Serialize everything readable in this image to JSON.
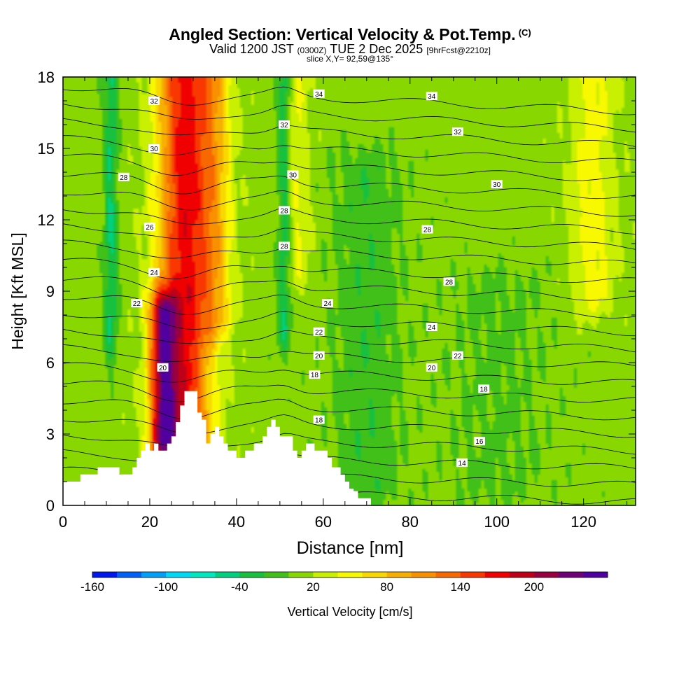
{
  "header": {
    "title": "Angled Section: Vertical Velocity & Pot.Temp.",
    "copyright": "(C)",
    "valid_prefix": "Valid 1200 JST",
    "valid_utc": "(0300Z)",
    "valid_date": "TUE 2 Dec 2025",
    "forecast": "[9hrFcst@2210z]",
    "slice": "slice X,Y= 92,59@135°"
  },
  "chart_data": {
    "type": "heatmap",
    "title": "Angled Section: Vertical Velocity & Pot.Temp.",
    "xlabel": "Distance [nm]",
    "ylabel": "Height [Kft MSL]",
    "xlim": [
      0,
      132
    ],
    "ylim": [
      0,
      18
    ],
    "x_ticks": [
      0,
      20,
      40,
      60,
      80,
      100,
      120
    ],
    "y_ticks": [
      0,
      3,
      6,
      9,
      12,
      15,
      18
    ],
    "colorbar": {
      "label": "Vertical Velocity [cm/s]",
      "range": [
        -160,
        260
      ],
      "step": 20,
      "tick_values": [
        -160,
        -100,
        -40,
        20,
        80,
        140,
        200
      ],
      "tick_labels": [
        "-160",
        "-100",
        "-40",
        "20",
        "80",
        "140",
        "200"
      ],
      "colors": [
        "#0018f0",
        "#0060f8",
        "#00a0f8",
        "#00d8f8",
        "#00e8c0",
        "#00d080",
        "#18c040",
        "#40c018",
        "#88d800",
        "#c8f000",
        "#f8f800",
        "#f8d800",
        "#f8b000",
        "#f89000",
        "#f86800",
        "#f83800",
        "#f00000",
        "#c00018",
        "#980040",
        "#700078",
        "#5000a0"
      ]
    },
    "background_velocity_cm_s": 10,
    "velocity_features": [
      {
        "kind": "updraft",
        "x": 28,
        "x_halfwidth": 6,
        "z_bottom": 3,
        "z_top": 18,
        "peak_cm_s": 160
      },
      {
        "kind": "updraft",
        "x": 23,
        "x_halfwidth": 3,
        "z_bottom": 2,
        "z_top": 8,
        "peak_cm_s": 160
      },
      {
        "kind": "updraft",
        "x": 35,
        "x_halfwidth": 4,
        "z_bottom": 8,
        "z_top": 18,
        "peak_cm_s": 60
      },
      {
        "kind": "downdraft",
        "x": 11,
        "x_halfwidth": 1.5,
        "z_bottom": 7,
        "z_top": 18,
        "peak_cm_s": -50
      },
      {
        "kind": "downdraft",
        "x": 51,
        "x_halfwidth": 1.5,
        "z_bottom": 7.5,
        "z_top": 18,
        "peak_cm_s": -50
      },
      {
        "kind": "updraft",
        "x": 54,
        "x_halfwidth": 3,
        "z_bottom": 10,
        "z_top": 18,
        "peak_cm_s": 30
      },
      {
        "kind": "updraft",
        "x": 122,
        "x_halfwidth": 5,
        "z_bottom": 9,
        "z_top": 18,
        "peak_cm_s": 40
      },
      {
        "kind": "downdraft",
        "x": 70,
        "x_halfwidth": 8,
        "z_bottom": 1,
        "z_top": 14,
        "peak_cm_s": -25
      },
      {
        "kind": "downdraft",
        "x": 100,
        "x_halfwidth": 12,
        "z_bottom": 1,
        "z_top": 9,
        "peak_cm_s": -15
      }
    ],
    "terrain_x_nm": [
      0,
      4,
      4,
      8,
      8,
      13,
      13,
      16,
      16,
      17,
      17,
      18,
      18,
      19,
      19,
      20,
      20,
      21,
      21,
      22,
      22,
      24,
      24,
      25,
      25,
      26,
      26,
      27,
      27,
      28,
      28,
      31,
      31,
      32,
      32,
      33,
      33,
      34,
      34,
      35,
      35,
      36,
      36,
      37,
      37,
      38,
      38,
      40,
      40,
      42,
      42,
      44,
      44,
      46,
      46,
      47,
      47,
      48,
      48,
      49,
      49,
      50,
      50,
      53,
      53,
      54,
      54,
      55,
      55,
      56,
      56,
      58,
      58,
      61,
      61,
      62,
      62,
      64,
      64,
      65,
      65,
      66,
      66,
      67,
      67,
      68,
      68,
      71,
      71,
      132
    ],
    "terrain_kft": [
      1,
      1,
      1.3,
      1.3,
      1.6,
      1.6,
      1.3,
      1.3,
      1.6,
      1.6,
      2.0,
      2.0,
      2.3,
      2.3,
      2.6,
      2.6,
      2.3,
      2.3,
      2.6,
      2.6,
      2.3,
      2.3,
      2.6,
      2.6,
      2.9,
      2.9,
      3.5,
      3.5,
      4.2,
      4.2,
      4.8,
      4.8,
      3.9,
      3.9,
      3.6,
      3.6,
      2.6,
      2.6,
      3.0,
      3.0,
      3.3,
      3.3,
      2.9,
      2.9,
      2.6,
      2.6,
      2.3,
      2.3,
      2.0,
      2.0,
      2.3,
      2.3,
      2.6,
      2.6,
      2.9,
      2.9,
      3.3,
      3.3,
      3.6,
      3.6,
      3.3,
      3.3,
      2.9,
      2.9,
      2.3,
      2.3,
      2.0,
      2.0,
      2.3,
      2.3,
      2.6,
      2.6,
      2.3,
      2.3,
      2.0,
      2.0,
      1.6,
      1.6,
      1.3,
      1.3,
      1.0,
      1.0,
      0.7,
      0.7,
      0.6,
      0.6,
      0.3,
      0.3,
      0,
      0
    ],
    "theta_contours_K": [
      12,
      13,
      14,
      15,
      16,
      17,
      18,
      19,
      20,
      21,
      22,
      23,
      24,
      25,
      26,
      27,
      28,
      29,
      30,
      31,
      32,
      33,
      34,
      35
    ],
    "theta_contour_labels": [
      {
        "text": "34",
        "x": 59,
        "z": 17.3
      },
      {
        "text": "34",
        "x": 85,
        "z": 17.2
      },
      {
        "text": "32",
        "x": 21,
        "z": 17.0
      },
      {
        "text": "32",
        "x": 51,
        "z": 16.0
      },
      {
        "text": "32",
        "x": 91,
        "z": 15.7
      },
      {
        "text": "30",
        "x": 21,
        "z": 15.0
      },
      {
        "text": "30",
        "x": 53,
        "z": 13.9
      },
      {
        "text": "30",
        "x": 100,
        "z": 13.5
      },
      {
        "text": "28",
        "x": 14,
        "z": 13.8
      },
      {
        "text": "28",
        "x": 51,
        "z": 12.4
      },
      {
        "text": "28",
        "x": 84,
        "z": 11.6
      },
      {
        "text": "28",
        "x": 51,
        "z": 10.9
      },
      {
        "text": "28",
        "x": 89,
        "z": 9.4
      },
      {
        "text": "26",
        "x": 20,
        "z": 11.7
      },
      {
        "text": "24",
        "x": 21,
        "z": 9.8
      },
      {
        "text": "24",
        "x": 61,
        "z": 8.5
      },
      {
        "text": "24",
        "x": 85,
        "z": 7.5
      },
      {
        "text": "22",
        "x": 17,
        "z": 8.5
      },
      {
        "text": "22",
        "x": 59,
        "z": 7.3
      },
      {
        "text": "22",
        "x": 91,
        "z": 6.3
      },
      {
        "text": "20",
        "x": 23,
        "z": 5.8
      },
      {
        "text": "20",
        "x": 59,
        "z": 6.3
      },
      {
        "text": "20",
        "x": 85,
        "z": 5.8
      },
      {
        "text": "18",
        "x": 58,
        "z": 5.5
      },
      {
        "text": "18",
        "x": 97,
        "z": 4.9
      },
      {
        "text": "18",
        "x": 59,
        "z": 3.6
      },
      {
        "text": "16",
        "x": 96,
        "z": 2.7
      },
      {
        "text": "14",
        "x": 92,
        "z": 1.8
      }
    ]
  },
  "colors": {
    "terrain": "#ffffff",
    "contour": "#000000",
    "frame": "#000000"
  }
}
